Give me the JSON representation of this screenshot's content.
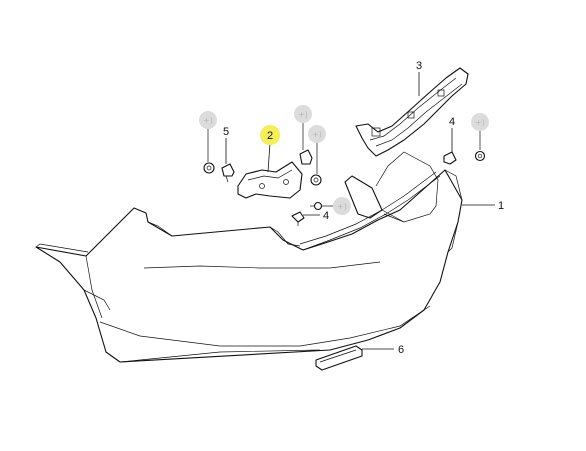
{
  "diagram": {
    "callouts": [
      {
        "id": "c1",
        "label": "1"
      },
      {
        "id": "c2",
        "label": "2",
        "highlight": true
      },
      {
        "id": "c3",
        "label": "3"
      },
      {
        "id": "c4a",
        "label": "4"
      },
      {
        "id": "c4b",
        "label": "4"
      },
      {
        "id": "c5",
        "label": "5"
      },
      {
        "id": "c6",
        "label": "6"
      }
    ],
    "add_marker_text": "+)",
    "colors": {
      "highlight": "#f4ee5a",
      "marker_circle": "#dcdcdc",
      "line": "#111111"
    }
  }
}
